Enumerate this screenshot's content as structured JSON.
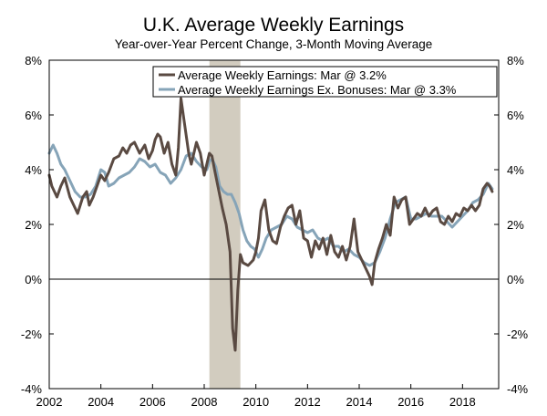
{
  "chart_data": {
    "type": "line",
    "title": "U.K. Average Weekly Earnings",
    "subtitle": "Year-over-Year Percent Change, 3-Month Moving Average",
    "xlabel": "",
    "ylabel": "",
    "xlim": [
      2002,
      2019.4
    ],
    "ylim": [
      -4,
      8
    ],
    "x_ticks": [
      2002,
      2004,
      2006,
      2008,
      2010,
      2012,
      2014,
      2016,
      2018
    ],
    "x_tick_labels": [
      "2002",
      "2004",
      "2006",
      "2008",
      "2010",
      "2012",
      "2014",
      "2016",
      "2018"
    ],
    "y_ticks": [
      -4,
      -2,
      0,
      2,
      4,
      6,
      8
    ],
    "y_tick_labels": [
      "-4%",
      "-2%",
      "0%",
      "2%",
      "4%",
      "6%",
      "8%"
    ],
    "grid": false,
    "legend_position": "top-right",
    "recession_shading": [
      2008.2,
      2009.4
    ],
    "recession_color": "#d2ccbf",
    "series": [
      {
        "name": "Average Weekly Earnings: Mar @ 3.2%",
        "color": "#5a4a42",
        "x": [
          2002.0,
          2002.1,
          2002.2,
          2002.3,
          2002.45,
          2002.6,
          2002.8,
          2002.95,
          2003.1,
          2003.3,
          2003.45,
          2003.55,
          2003.7,
          2003.85,
          2004.0,
          2004.15,
          2004.3,
          2004.5,
          2004.7,
          2004.85,
          2005.0,
          2005.15,
          2005.3,
          2005.5,
          2005.7,
          2005.85,
          2006.0,
          2006.1,
          2006.2,
          2006.3,
          2006.45,
          2006.6,
          2006.75,
          2006.9,
          2007.0,
          2007.1,
          2007.25,
          2007.4,
          2007.5,
          2007.6,
          2007.7,
          2007.85,
          2008.0,
          2008.1,
          2008.2,
          2008.3,
          2008.4,
          2008.55,
          2008.7,
          2008.85,
          2009.0,
          2009.1,
          2009.2,
          2009.3,
          2009.4,
          2009.5,
          2009.7,
          2009.9,
          2010.0,
          2010.1,
          2010.2,
          2010.35,
          2010.5,
          2010.65,
          2010.8,
          2010.95,
          2011.1,
          2011.25,
          2011.4,
          2011.55,
          2011.7,
          2011.85,
          2012.0,
          2012.15,
          2012.3,
          2012.45,
          2012.6,
          2012.75,
          2012.9,
          2013.05,
          2013.2,
          2013.35,
          2013.5,
          2013.65,
          2013.8,
          2013.95,
          2014.0,
          2014.1,
          2014.2,
          2014.3,
          2014.4,
          2014.5,
          2014.6,
          2014.75,
          2014.9,
          2015.05,
          2015.2,
          2015.35,
          2015.5,
          2015.65,
          2015.8,
          2015.95,
          2016.1,
          2016.25,
          2016.4,
          2016.55,
          2016.7,
          2016.85,
          2017.0,
          2017.15,
          2017.3,
          2017.45,
          2017.6,
          2017.75,
          2017.9,
          2018.05,
          2018.2,
          2018.35,
          2018.5,
          2018.65,
          2018.8,
          2018.95,
          2019.05,
          2019.15
        ],
        "values": [
          3.8,
          3.4,
          3.2,
          3.0,
          3.4,
          3.7,
          3.0,
          2.7,
          2.4,
          3.0,
          3.2,
          2.7,
          3.0,
          3.4,
          3.8,
          3.6,
          3.9,
          4.4,
          4.5,
          4.8,
          4.6,
          4.9,
          5.0,
          4.6,
          4.9,
          4.4,
          4.7,
          5.1,
          5.3,
          5.2,
          4.6,
          5.0,
          4.2,
          3.8,
          4.8,
          6.6,
          5.6,
          4.6,
          4.2,
          4.6,
          5.0,
          4.6,
          3.8,
          4.2,
          4.6,
          4.5,
          4.0,
          3.3,
          2.6,
          2.0,
          1.0,
          -1.8,
          -2.6,
          -0.4,
          0.9,
          0.6,
          0.5,
          0.7,
          1.0,
          1.5,
          2.5,
          2.9,
          1.8,
          1.4,
          1.3,
          1.9,
          2.3,
          2.6,
          2.7,
          2.0,
          2.5,
          1.5,
          1.4,
          0.8,
          1.4,
          1.1,
          1.5,
          0.9,
          1.6,
          1.0,
          0.8,
          1.2,
          0.7,
          1.2,
          2.2,
          1.0,
          0.9,
          0.7,
          0.5,
          0.3,
          0.1,
          -0.2,
          0.6,
          1.1,
          1.5,
          2.0,
          1.6,
          3.0,
          2.6,
          2.9,
          3.0,
          2.0,
          2.2,
          2.4,
          2.3,
          2.6,
          2.3,
          2.5,
          2.6,
          2.1,
          2.0,
          2.3,
          2.1,
          2.4,
          2.3,
          2.6,
          2.5,
          2.7,
          2.5,
          2.7,
          3.3,
          3.5,
          3.4,
          3.2
        ]
      },
      {
        "name": "Average Weekly Earnings Ex. Bonuses: Mar @ 3.3%",
        "color": "#86a4b8",
        "x": [
          2002.0,
          2002.15,
          2002.3,
          2002.45,
          2002.6,
          2002.8,
          2003.0,
          2003.2,
          2003.4,
          2003.6,
          2003.8,
          2004.0,
          2004.15,
          2004.3,
          2004.5,
          2004.7,
          2004.9,
          2005.1,
          2005.3,
          2005.5,
          2005.7,
          2005.9,
          2006.1,
          2006.3,
          2006.5,
          2006.7,
          2006.9,
          2007.1,
          2007.3,
          2007.5,
          2007.7,
          2007.9,
          2008.1,
          2008.2,
          2008.3,
          2008.45,
          2008.6,
          2008.75,
          2008.9,
          2009.05,
          2009.2,
          2009.35,
          2009.5,
          2009.65,
          2009.8,
          2009.95,
          2010.1,
          2010.25,
          2010.4,
          2010.6,
          2010.8,
          2011.0,
          2011.2,
          2011.4,
          2011.6,
          2011.8,
          2012.0,
          2012.2,
          2012.4,
          2012.6,
          2012.8,
          2013.0,
          2013.2,
          2013.4,
          2013.6,
          2013.8,
          2014.0,
          2014.2,
          2014.4,
          2014.6,
          2014.8,
          2015.0,
          2015.2,
          2015.4,
          2015.6,
          2015.8,
          2016.0,
          2016.2,
          2016.4,
          2016.6,
          2016.8,
          2017.0,
          2017.2,
          2017.4,
          2017.6,
          2017.8,
          2018.0,
          2018.2,
          2018.4,
          2018.6,
          2018.8,
          2019.0,
          2019.15
        ],
        "values": [
          4.6,
          4.9,
          4.6,
          4.2,
          4.0,
          3.6,
          3.2,
          3.0,
          3.0,
          3.1,
          3.4,
          4.0,
          3.9,
          3.4,
          3.5,
          3.7,
          3.8,
          3.9,
          4.1,
          4.4,
          4.3,
          4.1,
          4.2,
          3.9,
          3.8,
          3.5,
          3.7,
          4.0,
          4.5,
          4.6,
          4.3,
          4.1,
          4.0,
          4.3,
          4.4,
          4.1,
          3.4,
          3.2,
          3.1,
          3.1,
          2.8,
          2.4,
          1.8,
          1.4,
          1.2,
          1.1,
          0.8,
          1.1,
          1.5,
          1.8,
          1.9,
          2.0,
          2.3,
          2.2,
          1.9,
          1.8,
          1.7,
          1.8,
          1.5,
          1.4,
          1.5,
          1.2,
          1.2,
          1.0,
          1.1,
          0.9,
          0.8,
          0.6,
          0.5,
          0.6,
          1.0,
          1.5,
          2.2,
          2.8,
          2.9,
          3.0,
          2.2,
          2.2,
          2.3,
          2.4,
          2.3,
          2.3,
          2.3,
          2.1,
          1.9,
          2.1,
          2.3,
          2.5,
          2.8,
          2.9,
          3.1,
          3.5,
          3.3
        ]
      }
    ]
  }
}
